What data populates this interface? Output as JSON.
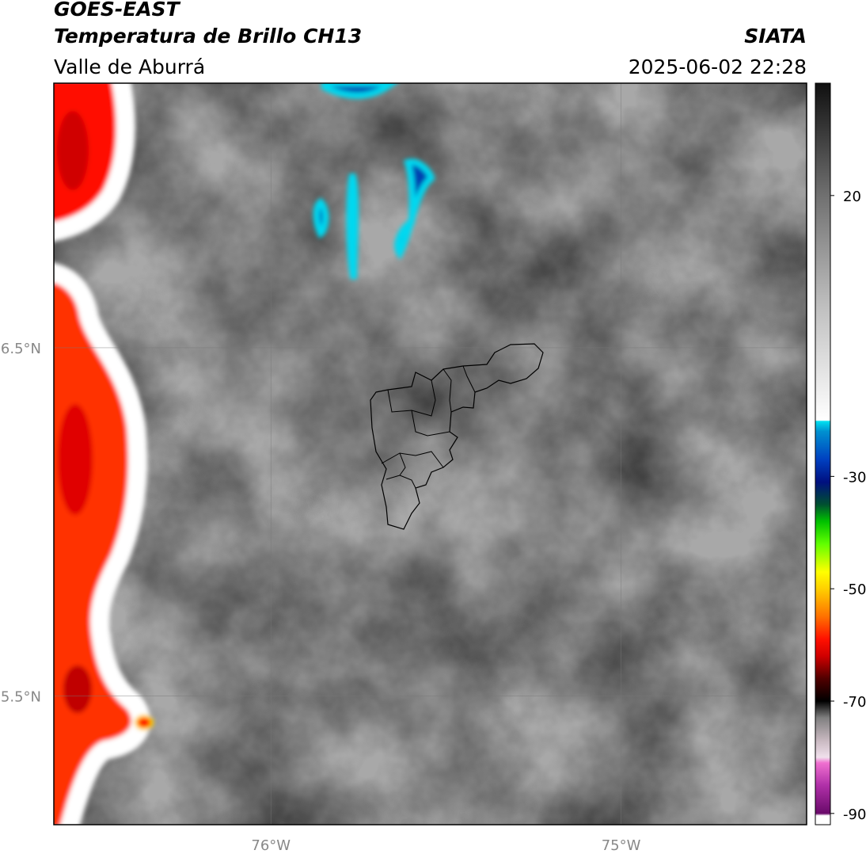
{
  "header": {
    "title": "GOES-EAST",
    "subtitle": "Temperatura de Brillo CH13",
    "region": "Valle de Aburrá",
    "source": "SIATA",
    "datetime": "2025-06-02 22:28"
  },
  "map": {
    "xlim": [
      -76.62,
      -74.47
    ],
    "ylim": [
      5.13,
      7.26
    ],
    "xticks": [
      {
        "value": -76,
        "label": "76°W"
      },
      {
        "value": -75,
        "label": "75°W"
      }
    ],
    "yticks": [
      {
        "value": 6.5,
        "label": "6.5°N"
      },
      {
        "value": 5.5,
        "label": "5.5°N"
      }
    ],
    "grid": true
  },
  "colorbar": {
    "lim": [
      -92,
      40
    ],
    "ticks": [
      20,
      -30,
      -50,
      -70,
      -90
    ],
    "stops": [
      {
        "value": -92,
        "color": "#ffffff"
      },
      {
        "value": -90.4,
        "color": "#ffffff"
      },
      {
        "value": -90,
        "color": "#6a0a6a"
      },
      {
        "value": -85,
        "color": "#b030a8"
      },
      {
        "value": -81,
        "color": "#f070d0"
      },
      {
        "value": -80,
        "color": "#f0e0ec"
      },
      {
        "value": -77,
        "color": "#c8b8c0"
      },
      {
        "value": -73,
        "color": "#808080"
      },
      {
        "value": -70,
        "color": "#000000"
      },
      {
        "value": -66,
        "color": "#500000"
      },
      {
        "value": -62,
        "color": "#d00000"
      },
      {
        "value": -59,
        "color": "#ff1000"
      },
      {
        "value": -55,
        "color": "#ff7000"
      },
      {
        "value": -50,
        "color": "#ffd000"
      },
      {
        "value": -47,
        "color": "#ffff00"
      },
      {
        "value": -42,
        "color": "#60ff00"
      },
      {
        "value": -38,
        "color": "#00c000"
      },
      {
        "value": -35,
        "color": "#005030"
      },
      {
        "value": -31,
        "color": "#001080"
      },
      {
        "value": -27,
        "color": "#0040c0"
      },
      {
        "value": -22,
        "color": "#0090d0"
      },
      {
        "value": -20.2,
        "color": "#00e0f0"
      },
      {
        "value": -20,
        "color": "#ffffff"
      },
      {
        "value": 0,
        "color": "#c0c0c0"
      },
      {
        "value": 20,
        "color": "#707070"
      },
      {
        "value": 40,
        "color": "#101010"
      }
    ]
  }
}
